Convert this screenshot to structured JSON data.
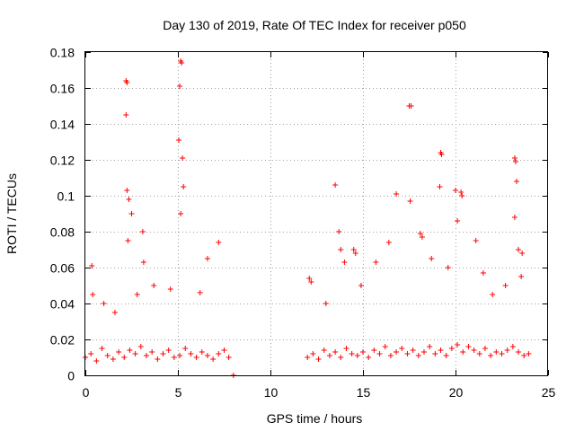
{
  "chart_data": {
    "type": "scatter",
    "title": "Day 130 of 2019, Rate Of TEC Index for receiver p050",
    "xlabel": "GPS time / hours",
    "ylabel": "ROTI / TECUs",
    "xlim": [
      0,
      25
    ],
    "ylim": [
      0,
      0.18
    ],
    "xticks": [
      0,
      5,
      10,
      15,
      20,
      25
    ],
    "xtick_labels": [
      "0",
      "5",
      "10",
      "15",
      "20",
      "25"
    ],
    "yticks": [
      0,
      0.02,
      0.04,
      0.06,
      0.08,
      0.1,
      0.12,
      0.14,
      0.16,
      0.18
    ],
    "ytick_labels": [
      "0",
      "0.02",
      "0.04",
      "0.06",
      "0.08",
      "0.1",
      "0.12",
      "0.14",
      "0.16",
      "0.18"
    ],
    "grid": true,
    "marker": "+",
    "marker_color": "#ff0000",
    "series": [
      {
        "name": "ROTI",
        "x": [
          0.0,
          0.3,
          0.6,
          0.9,
          1.2,
          1.5,
          1.8,
          2.1,
          2.4,
          2.7,
          3.0,
          3.3,
          3.6,
          3.9,
          4.2,
          4.5,
          4.8,
          5.1,
          5.4,
          5.7,
          6.0,
          6.3,
          6.6,
          6.9,
          7.2,
          7.5,
          7.75,
          12.0,
          12.3,
          12.6,
          12.9,
          13.2,
          13.5,
          13.8,
          14.1,
          14.4,
          14.7,
          15.0,
          15.3,
          15.6,
          15.9,
          16.2,
          16.5,
          16.8,
          17.1,
          17.4,
          17.7,
          18.0,
          18.3,
          18.6,
          18.9,
          19.2,
          19.5,
          19.8,
          20.1,
          20.4,
          20.7,
          21.0,
          21.3,
          21.6,
          21.9,
          22.2,
          22.5,
          22.8,
          23.1,
          23.4,
          23.7,
          23.95,
          0.35,
          0.4,
          2.2,
          2.25,
          2.2,
          2.25,
          2.35,
          2.5,
          2.3,
          3.1,
          3.15,
          5.15,
          5.2,
          5.1,
          5.05,
          5.25,
          5.3,
          5.15,
          6.6,
          7.2,
          12.1,
          12.2,
          13.5,
          13.7,
          13.8,
          14.0,
          14.5,
          14.6,
          16.8,
          17.5,
          17.6,
          17.55,
          18.1,
          18.2,
          19.2,
          19.25,
          19.15,
          20.0,
          20.3,
          20.35,
          20.1,
          21.5,
          23.2,
          23.25,
          23.3,
          23.2,
          23.4,
          23.6,
          23.55,
          1.0,
          1.6,
          2.8,
          3.7,
          4.6,
          6.2,
          8.0,
          13.0,
          14.9,
          15.7,
          16.4,
          18.7,
          19.6,
          21.1,
          22.0,
          22.7
        ],
        "y": [
          0.01,
          0.012,
          0.008,
          0.015,
          0.011,
          0.009,
          0.013,
          0.01,
          0.014,
          0.012,
          0.016,
          0.011,
          0.013,
          0.009,
          0.012,
          0.014,
          0.01,
          0.011,
          0.015,
          0.012,
          0.01,
          0.013,
          0.011,
          0.009,
          0.012,
          0.014,
          0.01,
          0.01,
          0.012,
          0.009,
          0.014,
          0.011,
          0.013,
          0.01,
          0.015,
          0.012,
          0.011,
          0.013,
          0.01,
          0.014,
          0.012,
          0.016,
          0.011,
          0.013,
          0.015,
          0.012,
          0.014,
          0.011,
          0.013,
          0.016,
          0.012,
          0.014,
          0.011,
          0.015,
          0.017,
          0.013,
          0.016,
          0.014,
          0.012,
          0.015,
          0.011,
          0.013,
          0.012,
          0.014,
          0.016,
          0.013,
          0.011,
          0.012,
          0.061,
          0.045,
          0.164,
          0.163,
          0.145,
          0.103,
          0.098,
          0.09,
          0.075,
          0.08,
          0.063,
          0.175,
          0.174,
          0.161,
          0.131,
          0.121,
          0.105,
          0.09,
          0.065,
          0.074,
          0.054,
          0.052,
          0.106,
          0.08,
          0.07,
          0.063,
          0.07,
          0.068,
          0.101,
          0.15,
          0.15,
          0.097,
          0.079,
          0.077,
          0.124,
          0.123,
          0.105,
          0.103,
          0.102,
          0.1,
          0.086,
          0.057,
          0.121,
          0.119,
          0.108,
          0.088,
          0.07,
          0.068,
          0.055,
          0.04,
          0.035,
          0.045,
          0.05,
          0.048,
          0.046,
          0.0,
          0.04,
          0.05,
          0.063,
          0.074,
          0.065,
          0.06,
          0.075,
          0.045,
          0.05
        ]
      }
    ]
  }
}
